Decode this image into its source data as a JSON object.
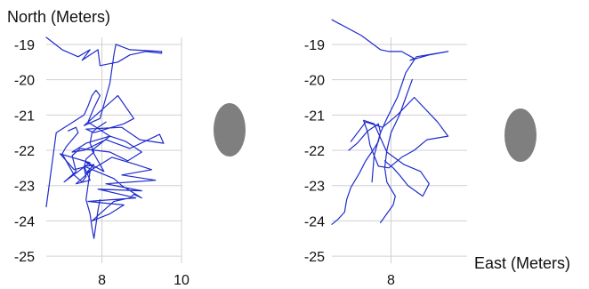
{
  "chart_data": [
    {
      "type": "line",
      "ylabel": "North (Meters)",
      "xlabel": "",
      "xlim": [
        6.6,
        10.0
      ],
      "ylim": [
        -25.2,
        -18.8
      ],
      "xticks": [
        8,
        10
      ],
      "xtick_labels": [
        "8",
        "10"
      ],
      "yticks": [
        -19,
        -20,
        -21,
        -22,
        -23,
        -24,
        -25
      ],
      "ytick_labels": [
        "-19",
        "-20",
        "-21",
        "-22",
        "-23",
        "-24",
        "-25"
      ],
      "grid": true,
      "series": [
        {
          "color": "#1f2ccc",
          "x": [
            6.6,
            7.0,
            7.4,
            7.7,
            7.5,
            7.9,
            7.95,
            8.4,
            8.7,
            9.1,
            9.5,
            9.5,
            8.7,
            8.35,
            8.3,
            8.2,
            7.95,
            7.55,
            8.4,
            8.8,
            8.55,
            7.8,
            7.6,
            8.5,
            8.95,
            9.55,
            9.45,
            8.7,
            8.1,
            7.55,
            7.25,
            7.6,
            8.2,
            8.6,
            9.0,
            8.65,
            8.2,
            7.45,
            7.25,
            7.35,
            7.05,
            7.7,
            6.95,
            7.3,
            7.8,
            7.6,
            8.25,
            8.85,
            9.25,
            8.5,
            9.35,
            8.1,
            9.0,
            7.9,
            8.85,
            7.65,
            8.55,
            8.2,
            7.75,
            8.3,
            8.7,
            8.8,
            9.0,
            8.5,
            8.3,
            7.55,
            7.7,
            7.35,
            7.8,
            7.55,
            8.05,
            7.75,
            8.2,
            7.65,
            7.8,
            7.95,
            7.85,
            7.75,
            7.65,
            7.55,
            6.85,
            6.6
          ],
          "y": [
            -18.8,
            -19.15,
            -19.35,
            -19.15,
            -19.45,
            -19.15,
            -19.6,
            -19.5,
            -19.3,
            -19.2,
            -19.25,
            -19.2,
            -19.15,
            -19.0,
            -19.3,
            -20.1,
            -21.1,
            -21.3,
            -20.45,
            -21.1,
            -21.25,
            -21.5,
            -21.4,
            -21.35,
            -21.7,
            -21.8,
            -21.55,
            -21.95,
            -21.7,
            -22.0,
            -22.05,
            -21.8,
            -21.6,
            -21.75,
            -22.05,
            -22.3,
            -22.05,
            -21.95,
            -22.15,
            -22.6,
            -22.9,
            -22.35,
            -22.1,
            -22.55,
            -22.4,
            -22.65,
            -22.2,
            -22.4,
            -22.55,
            -22.7,
            -22.85,
            -22.95,
            -23.15,
            -23.1,
            -23.35,
            -23.45,
            -23.55,
            -23.8,
            -24.0,
            -23.45,
            -23.35,
            -23.25,
            -23.35,
            -23.0,
            -22.8,
            -22.45,
            -22.85,
            -22.95,
            -22.5,
            -22.3,
            -22.6,
            -22.0,
            -21.6,
            -21.2,
            -20.8,
            -20.45,
            -20.3,
            -20.45,
            -20.75,
            -21.0,
            -21.5,
            -23.6
          ]
        },
        {
          "color": "#1f2ccc",
          "x": [
            8.1,
            7.9,
            7.75,
            7.7,
            7.8,
            7.6,
            7.55,
            7.6,
            7.5,
            7.3,
            7.2,
            7.1,
            7.0,
            7.1,
            7.25,
            7.4,
            7.35,
            7.15
          ],
          "y": [
            -21.2,
            -21.35,
            -21.5,
            -21.8,
            -22.05,
            -22.25,
            -22.5,
            -22.75,
            -22.9,
            -22.7,
            -22.5,
            -22.3,
            -22.1,
            -21.9,
            -21.7,
            -21.5,
            -21.35,
            -21.45
          ]
        },
        {
          "color": "#1f2ccc",
          "x": [
            7.7,
            7.65,
            7.6,
            7.7,
            7.75,
            7.8,
            7.85,
            7.9,
            7.95
          ],
          "y": [
            -22.6,
            -23.0,
            -23.4,
            -23.8,
            -24.2,
            -24.5,
            -24.1,
            -23.7,
            -23.4
          ]
        }
      ]
    },
    {
      "type": "line",
      "ylabel": "",
      "xlabel": "East (Meters)",
      "xlim": [
        6.6,
        9.8
      ],
      "ylim": [
        -25.2,
        -18.8
      ],
      "xticks": [
        8
      ],
      "xtick_labels": [
        "8"
      ],
      "yticks": [
        -19,
        -20,
        -21,
        -22,
        -23,
        -24,
        -25
      ],
      "ytick_labels": [
        "-19",
        "-20",
        "-21",
        "-22",
        "-23",
        "-24",
        "-25"
      ],
      "grid": true,
      "series": [
        {
          "color": "#1f2ccc",
          "x": [
            6.6,
            7.3,
            7.75,
            7.95,
            8.25,
            8.55,
            8.45,
            8.9,
            9.35,
            8.6,
            8.35,
            8.15,
            7.9,
            7.75,
            7.7,
            7.6,
            7.4,
            7.25,
            7.05,
            6.95,
            6.9,
            6.75,
            6.6
          ],
          "y": [
            -18.3,
            -18.75,
            -19.15,
            -19.2,
            -19.2,
            -19.4,
            -19.45,
            -19.3,
            -19.2,
            -19.35,
            -19.8,
            -20.5,
            -21.1,
            -21.5,
            -21.75,
            -21.95,
            -22.3,
            -22.65,
            -23.05,
            -23.4,
            -23.75,
            -23.95,
            -24.1
          ]
        },
        {
          "color": "#1f2ccc",
          "x": [
            7.05,
            7.4,
            7.8,
            8.15,
            8.55,
            9.1,
            9.35,
            8.85,
            8.55,
            8.25,
            7.95,
            7.7,
            7.6,
            7.5,
            7.45,
            7.35,
            7.6,
            7.9,
            8.3,
            8.7,
            8.9,
            8.75,
            8.4,
            8.2,
            8.05,
            7.85
          ],
          "y": [
            -21.75,
            -21.2,
            -21.35,
            -21.0,
            -20.5,
            -21.2,
            -21.6,
            -21.7,
            -22.0,
            -22.2,
            -22.5,
            -22.45,
            -22.15,
            -21.85,
            -21.5,
            -21.15,
            -21.25,
            -22.05,
            -22.4,
            -22.6,
            -22.95,
            -23.3,
            -23.0,
            -22.7,
            -22.5,
            -22.3
          ]
        },
        {
          "color": "#1f2ccc",
          "x": [
            8.5,
            8.35,
            8.2,
            8.0,
            7.9,
            7.85,
            7.9,
            8.0,
            8.1,
            8.05,
            7.9,
            7.75
          ],
          "y": [
            -20.0,
            -20.5,
            -21.0,
            -21.5,
            -22.0,
            -22.5,
            -22.9,
            -23.1,
            -23.3,
            -23.55,
            -23.8,
            -24.05
          ]
        },
        {
          "color": "#1f2ccc",
          "x": [
            7.0,
            7.2,
            7.45,
            7.7,
            7.75,
            7.6,
            7.55
          ],
          "y": [
            -22.0,
            -21.8,
            -21.45,
            -21.25,
            -21.5,
            -22.15,
            -22.9
          ]
        }
      ]
    }
  ],
  "markers": [
    {
      "shape": "ellipse",
      "color": "#7f7f7f"
    },
    {
      "shape": "ellipse",
      "color": "#7f7f7f"
    }
  ]
}
